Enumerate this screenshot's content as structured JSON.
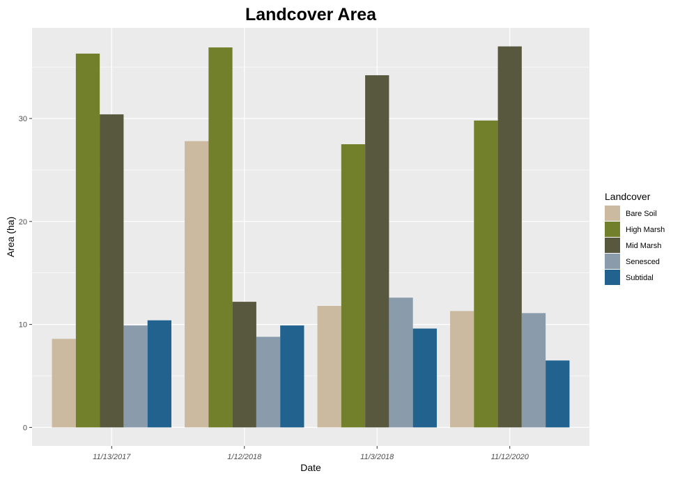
{
  "chart_data": {
    "type": "bar",
    "title": "Landcover Area",
    "xlabel": "Date",
    "ylabel": "Area (ha)",
    "categories": [
      "11/13/2017",
      "1/12/2018",
      "11/3/2018",
      "11/12/2020"
    ],
    "yticks": [
      0,
      10,
      20,
      30
    ],
    "ylim": [
      -1.8,
      38.8
    ],
    "grid": true,
    "legend_title": "Landcover",
    "legend_position": "right",
    "series": [
      {
        "name": "Bare Soil",
        "color": "#cbb9a0",
        "values": [
          8.6,
          27.8,
          11.8,
          11.3
        ]
      },
      {
        "name": "High Marsh",
        "color": "#72802b",
        "values": [
          36.3,
          36.9,
          27.5,
          29.8
        ]
      },
      {
        "name": "Mid Marsh",
        "color": "#58583f",
        "values": [
          30.4,
          12.2,
          34.2,
          37.0
        ]
      },
      {
        "name": "Senesced",
        "color": "#8a9cac",
        "values": [
          9.9,
          8.8,
          12.6,
          11.1
        ]
      },
      {
        "name": "Subtidal",
        "color": "#21628f",
        "values": [
          10.4,
          9.9,
          9.6,
          6.5
        ]
      }
    ]
  }
}
